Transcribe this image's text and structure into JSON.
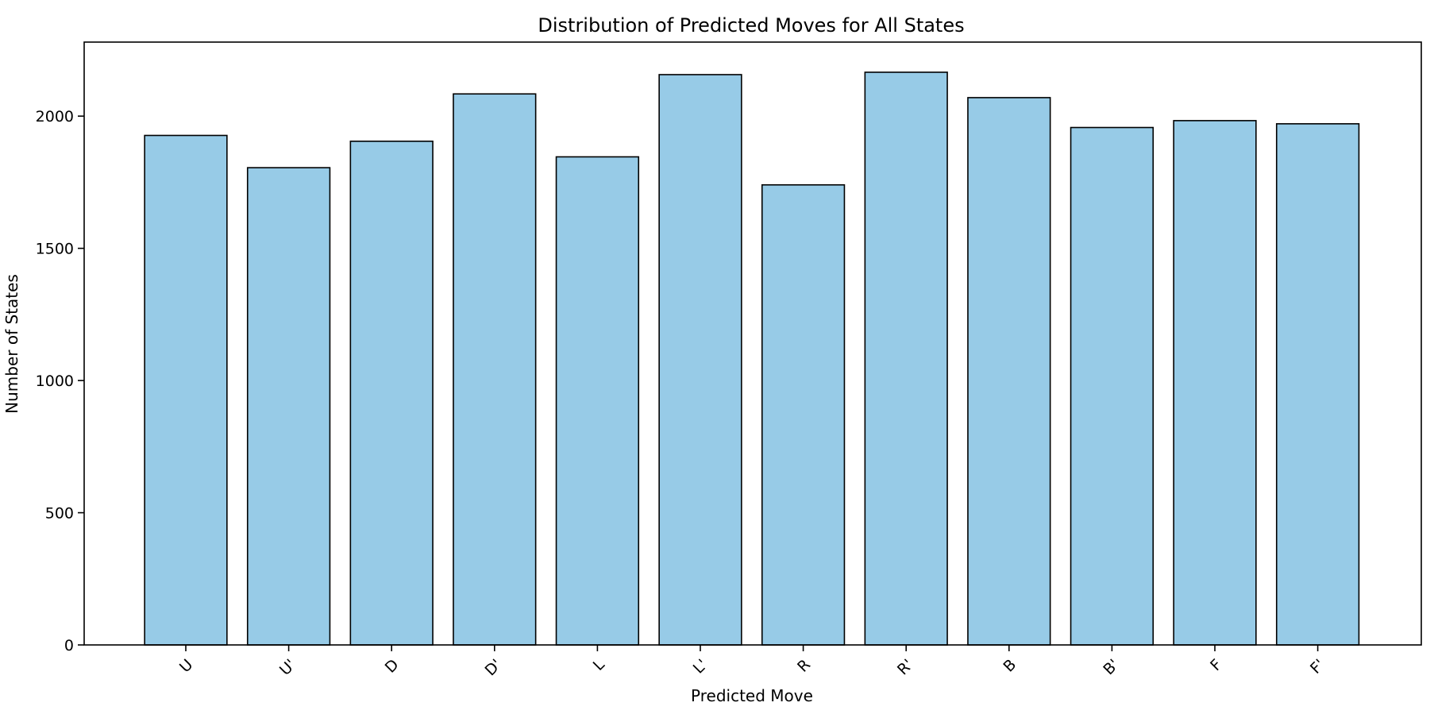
{
  "chart_data": {
    "type": "bar",
    "title": "Distribution of Predicted Moves for All States",
    "xlabel": "Predicted Move",
    "ylabel": "Number of States",
    "categories": [
      "U",
      "U'",
      "D",
      "D'",
      "L",
      "L'",
      "R",
      "R'",
      "B",
      "B'",
      "F",
      "F'"
    ],
    "values": [
      1927,
      1805,
      1905,
      2084,
      1846,
      2157,
      1740,
      2166,
      2070,
      1957,
      1983,
      1971
    ],
    "ylim": [
      0,
      2280
    ],
    "yticks": [
      0,
      500,
      1000,
      1500,
      2000
    ],
    "bar_color": "#97cbe7",
    "edge_color": "#000000",
    "grid": false,
    "legend": "none"
  }
}
